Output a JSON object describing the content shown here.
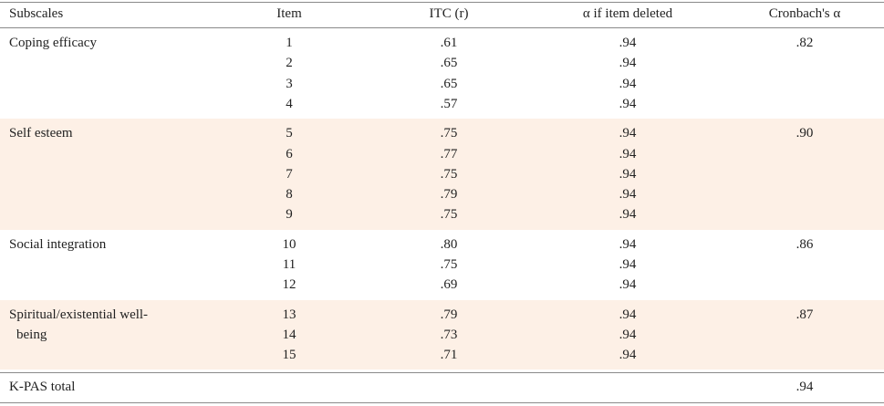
{
  "table": {
    "header": [
      "Subscales",
      "Item",
      "ITC (r)",
      "α  if item deleted",
      "Cronbach's α"
    ],
    "groups": [
      {
        "subscale": "Coping efficacy",
        "items": [
          "1",
          "2",
          "3",
          "4"
        ],
        "itc": [
          ".61",
          ".65",
          ".65",
          ".57"
        ],
        "alpha_if_deleted": [
          ".94",
          ".94",
          ".94",
          ".94"
        ],
        "cronbach": ".82"
      },
      {
        "subscale": "Self esteem",
        "items": [
          "5",
          "6",
          "7",
          "8",
          "9"
        ],
        "itc": [
          ".75",
          ".77",
          ".75",
          ".79",
          ".75"
        ],
        "alpha_if_deleted": [
          ".94",
          ".94",
          ".94",
          ".94",
          ".94"
        ],
        "cronbach": ".90"
      },
      {
        "subscale": "Social integration",
        "items": [
          "10",
          "11",
          "12"
        ],
        "itc": [
          ".80",
          ".75",
          ".69"
        ],
        "alpha_if_deleted": [
          ".94",
          ".94",
          ".94"
        ],
        "cronbach": ".86"
      },
      {
        "subscale": "Spiritual/existential well-being",
        "items": [
          "13",
          "14",
          "15"
        ],
        "itc": [
          ".79",
          ".73",
          ".71"
        ],
        "alpha_if_deleted": [
          ".94",
          ".94",
          ".94"
        ],
        "cronbach": ".87"
      }
    ],
    "total": {
      "label": "K-PAS total",
      "cronbach": ".94"
    }
  }
}
